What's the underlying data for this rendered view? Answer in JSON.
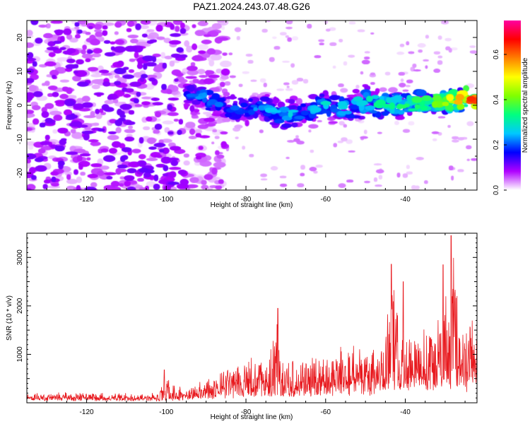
{
  "title": "PAZ1.2024.243.07.48.G26",
  "chart_data": [
    {
      "type": "heatmap",
      "xlabel": "Height of straight line (km)",
      "ylabel": "Frequency (Hz)",
      "xlim": [
        -135,
        -22
      ],
      "ylim": [
        -25,
        25
      ],
      "xticks": [
        -120,
        -100,
        -80,
        -60,
        -40
      ],
      "yticks": [
        -20,
        -10,
        0,
        10,
        20
      ],
      "colorbar": {
        "label": "Normalized spectral amplitude",
        "range": [
          0,
          0.75
        ],
        "ticks": [
          0,
          0.2,
          0.4,
          0.6
        ],
        "colors": [
          "#ffffff",
          "#b000ff",
          "#0000ff",
          "#00c8ff",
          "#00ff80",
          "#80ff00",
          "#ffff00",
          "#ff8000",
          "#ff0000",
          "#ff00a0"
        ]
      },
      "ridge": {
        "x": [
          -95,
          -90,
          -85,
          -80,
          -75,
          -70,
          -65,
          -60,
          -55,
          -50,
          -45,
          -40,
          -35,
          -30,
          -25,
          -22
        ],
        "freq_hz": [
          3,
          2,
          -1,
          -1,
          -1,
          -3,
          -2,
          0,
          -1,
          1,
          0,
          0,
          1,
          1,
          2,
          2.5
        ],
        "peak_amplitude": [
          0.2,
          0.25,
          0.2,
          0.22,
          0.25,
          0.28,
          0.25,
          0.3,
          0.3,
          0.33,
          0.35,
          0.38,
          0.4,
          0.5,
          0.6,
          0.75
        ]
      },
      "noise_region": {
        "x": [
          -135,
          -90
        ],
        "amplitude": 0.12
      }
    },
    {
      "type": "line",
      "xlabel": "Height of straight line (km)",
      "ylabel": "SNR (10 * v/v)",
      "xlim": [
        -135,
        -22
      ],
      "ylim": [
        0,
        3500
      ],
      "xticks": [
        -120,
        -100,
        -80,
        -60,
        -40
      ],
      "yticks": [
        1000,
        2000,
        3000
      ],
      "color": "#e8191e",
      "envelope": {
        "x": [
          -135,
          -120,
          -110,
          -102,
          -100,
          -95,
          -90,
          -85,
          -80,
          -75,
          -72,
          -70,
          -65,
          -60,
          -55,
          -52,
          -50,
          -45,
          -43,
          -41,
          -39,
          -37,
          -35,
          -32,
          -30,
          -28,
          -26,
          -25,
          -23,
          -22
        ],
        "baseline": [
          90,
          90,
          80,
          80,
          90,
          100,
          150,
          200,
          250,
          280,
          300,
          280,
          260,
          250,
          300,
          350,
          350,
          350,
          400,
          420,
          450,
          480,
          450,
          500,
          520,
          550,
          500,
          480,
          550,
          700
        ],
        "amplitude": [
          120,
          140,
          130,
          130,
          500,
          160,
          450,
          600,
          700,
          800,
          1500,
          750,
          900,
          750,
          1000,
          1000,
          900,
          1300,
          2700,
          1000,
          1300,
          1000,
          1300,
          1300,
          2200,
          3400,
          1300,
          1000,
          1600,
          1300
        ]
      },
      "peaks": [
        {
          "x": -100.5,
          "y": 680
        },
        {
          "x": -72,
          "y": 1950
        },
        {
          "x": -43.5,
          "y": 2860
        },
        {
          "x": -40.5,
          "y": 2500
        },
        {
          "x": -30.5,
          "y": 2850
        },
        {
          "x": -28.5,
          "y": 3450
        }
      ]
    }
  ]
}
